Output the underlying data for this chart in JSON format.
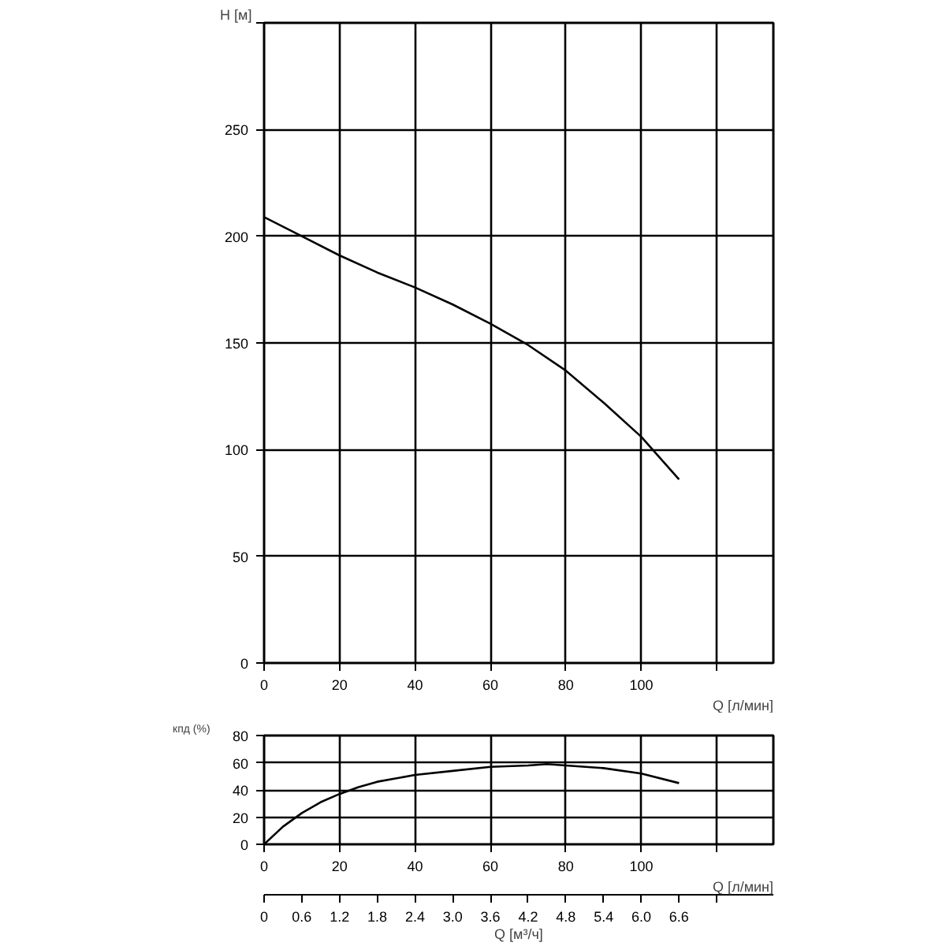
{
  "chart_data": [
    {
      "type": "line",
      "xlabel": "Q [л/мин]",
      "ylabel": "H [м]",
      "grid": true,
      "marker": "none",
      "xlim": [
        0,
        135
      ],
      "xticks": [
        0,
        20,
        40,
        60,
        80,
        100,
        {
          "value": 120,
          "label": null
        }
      ],
      "ylim": [
        0,
        300
      ],
      "yticks": [
        0,
        50,
        100,
        150,
        200,
        250,
        {
          "value": 300,
          "label": null
        }
      ],
      "series": [
        {
          "color": "#000000",
          "x": [
            0,
            10,
            20,
            30,
            40,
            50,
            60,
            70,
            80,
            90,
            100,
            103,
            110
          ],
          "values": [
            209,
            200,
            191,
            183,
            176,
            168,
            159,
            149,
            137,
            122,
            106,
            100,
            86
          ]
        }
      ]
    },
    {
      "type": "line",
      "xlabel": "Q [л/мин]",
      "ylabel": "кпд (%)",
      "x2label": "Q [м³/ч]",
      "grid": true,
      "marker": "none",
      "xlim": [
        0,
        135
      ],
      "xticks": [
        0,
        20,
        40,
        60,
        80,
        100,
        {
          "value": 120,
          "label": null
        }
      ],
      "ylim": [
        0,
        80
      ],
      "yticks": [
        0,
        20,
        40,
        60,
        80
      ],
      "x2lim": [
        0,
        8.1
      ],
      "x2ticks": [
        0,
        0.6,
        1.2,
        1.8,
        2.4,
        {
          "value": 3,
          "label": "3.0"
        },
        3.6,
        4.2,
        4.8,
        5.4,
        {
          "value": 6,
          "label": "6.0"
        },
        6.6,
        {
          "value": 7.2,
          "label": null
        }
      ],
      "series": [
        {
          "color": "#000000",
          "x": [
            0,
            5,
            10,
            15,
            20,
            25,
            30,
            40,
            50,
            60,
            70,
            75,
            80,
            90,
            100,
            110
          ],
          "values": [
            0,
            13,
            23,
            31,
            37,
            42,
            46,
            51,
            54,
            57,
            58,
            59,
            58,
            56,
            52,
            45
          ]
        }
      ]
    }
  ]
}
